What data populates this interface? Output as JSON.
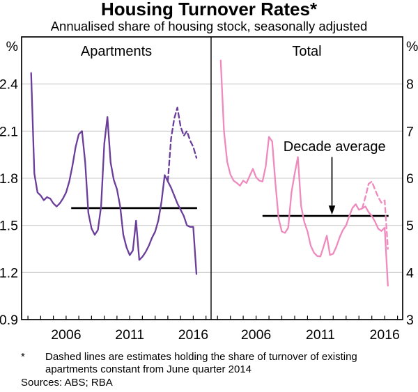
{
  "title": "Housing Turnover Rates*",
  "subtitle": "Annualised share of housing stock, seasonally adjusted",
  "footnote": {
    "marker": "*",
    "text": "Dashed lines are estimates holding the share of turnover of existing apartments constant from June quarter 2014"
  },
  "sources": "Sources: ABS; RBA",
  "colors": {
    "apartments": "#6a3d9a",
    "total": "#ee8abd",
    "average_line": "#000000",
    "gridline": "#c9c9c9",
    "axis": "#000000"
  },
  "chart_data": [
    {
      "type": "line",
      "panel": "left",
      "title": "Apartments",
      "unit_label": "%",
      "ylim": [
        0.9,
        2.7
      ],
      "yticks": [
        0.9,
        1.2,
        1.5,
        1.8,
        2.1,
        2.4
      ],
      "xlim": [
        2002.5,
        2017.4
      ],
      "xticks_labeled": [
        2006,
        2011,
        2016
      ],
      "grid": true,
      "average_line": {
        "value": 1.61,
        "from": 2006.4,
        "to": 2016.3
      },
      "series": [
        {
          "name": "apartments-turnover",
          "legend": "Apartments",
          "style": "solid",
          "color": "apartments",
          "points": [
            [
              2003.25,
              2.47
            ],
            [
              2003.5,
              1.83
            ],
            [
              2003.75,
              1.71
            ],
            [
              2004,
              1.69
            ],
            [
              2004.25,
              1.66
            ],
            [
              2004.5,
              1.68
            ],
            [
              2004.75,
              1.67
            ],
            [
              2005,
              1.64
            ],
            [
              2005.25,
              1.62
            ],
            [
              2005.5,
              1.64
            ],
            [
              2005.75,
              1.67
            ],
            [
              2006,
              1.71
            ],
            [
              2006.25,
              1.78
            ],
            [
              2006.5,
              1.88
            ],
            [
              2006.75,
              2.0
            ],
            [
              2007,
              2.08
            ],
            [
              2007.25,
              2.1
            ],
            [
              2007.5,
              1.9
            ],
            [
              2007.75,
              1.58
            ],
            [
              2008,
              1.48
            ],
            [
              2008.25,
              1.44
            ],
            [
              2008.5,
              1.47
            ],
            [
              2008.75,
              1.62
            ],
            [
              2009,
              2.02
            ],
            [
              2009.25,
              2.19
            ],
            [
              2009.5,
              1.9
            ],
            [
              2009.75,
              1.79
            ],
            [
              2010,
              1.73
            ],
            [
              2010.25,
              1.62
            ],
            [
              2010.5,
              1.44
            ],
            [
              2010.75,
              1.36
            ],
            [
              2011,
              1.31
            ],
            [
              2011.25,
              1.34
            ],
            [
              2011.5,
              1.53
            ],
            [
              2011.75,
              1.28
            ],
            [
              2012,
              1.3
            ],
            [
              2012.25,
              1.33
            ],
            [
              2012.5,
              1.37
            ],
            [
              2012.75,
              1.42
            ],
            [
              2013,
              1.46
            ],
            [
              2013.25,
              1.53
            ],
            [
              2013.5,
              1.65
            ],
            [
              2013.75,
              1.82
            ],
            [
              2014,
              1.78
            ],
            [
              2014.25,
              1.74
            ],
            [
              2014.5,
              1.69
            ],
            [
              2014.75,
              1.64
            ],
            [
              2015,
              1.6
            ],
            [
              2015.25,
              1.56
            ],
            [
              2015.5,
              1.5
            ],
            [
              2015.75,
              1.49
            ],
            [
              2016,
              1.49
            ],
            [
              2016.25,
              1.19
            ]
          ]
        },
        {
          "name": "apartments-turnover-estimate",
          "legend": "Apartments (estimate)",
          "style": "dashed",
          "color": "apartments",
          "points": [
            [
              2014,
              1.78
            ],
            [
              2014.25,
              2.05
            ],
            [
              2014.5,
              2.18
            ],
            [
              2014.75,
              2.25
            ],
            [
              2015,
              2.13
            ],
            [
              2015.25,
              2.07
            ],
            [
              2015.5,
              2.1
            ],
            [
              2015.75,
              2.04
            ],
            [
              2016,
              2.0
            ],
            [
              2016.25,
              1.93
            ]
          ]
        }
      ]
    },
    {
      "type": "line",
      "panel": "right",
      "title": "Total",
      "unit_label": "%",
      "ylim": [
        3,
        9
      ],
      "yticks": [
        3,
        4,
        5,
        6,
        7,
        8
      ],
      "xlim": [
        2002.5,
        2017.4
      ],
      "xticks_labeled": [
        2006,
        2011,
        2016
      ],
      "grid": true,
      "average_line": {
        "value": 5.2,
        "from": 2006.5,
        "to": 2016.3
      },
      "annotation": {
        "text": "Decade average",
        "text_year": 2012.1,
        "text_value": 6.58,
        "arrow_year": 2011.9,
        "arrow_from": 6.45,
        "arrow_to": 5.42
      },
      "series": [
        {
          "name": "total-turnover",
          "legend": "Total",
          "style": "solid",
          "color": "total",
          "points": [
            [
              2003.25,
              8.5
            ],
            [
              2003.5,
              7.0
            ],
            [
              2003.75,
              6.35
            ],
            [
              2004,
              6.08
            ],
            [
              2004.25,
              5.95
            ],
            [
              2004.5,
              5.9
            ],
            [
              2004.75,
              5.84
            ],
            [
              2005,
              5.95
            ],
            [
              2005.25,
              5.9
            ],
            [
              2005.5,
              6.05
            ],
            [
              2005.75,
              6.2
            ],
            [
              2006,
              6.02
            ],
            [
              2006.25,
              5.95
            ],
            [
              2006.5,
              5.93
            ],
            [
              2006.75,
              6.25
            ],
            [
              2007,
              6.88
            ],
            [
              2007.25,
              6.78
            ],
            [
              2007.5,
              5.9
            ],
            [
              2007.75,
              5.15
            ],
            [
              2008,
              4.87
            ],
            [
              2008.25,
              4.84
            ],
            [
              2008.5,
              4.95
            ],
            [
              2008.75,
              5.7
            ],
            [
              2009,
              6.1
            ],
            [
              2009.25,
              6.45
            ],
            [
              2009.5,
              5.41
            ],
            [
              2009.75,
              5.07
            ],
            [
              2010,
              4.87
            ],
            [
              2010.25,
              4.57
            ],
            [
              2010.5,
              4.42
            ],
            [
              2010.75,
              4.35
            ],
            [
              2011,
              4.34
            ],
            [
              2011.25,
              4.55
            ],
            [
              2011.5,
              4.78
            ],
            [
              2011.75,
              4.37
            ],
            [
              2012,
              4.4
            ],
            [
              2012.25,
              4.55
            ],
            [
              2012.5,
              4.75
            ],
            [
              2012.75,
              4.9
            ],
            [
              2013,
              5.0
            ],
            [
              2013.25,
              5.2
            ],
            [
              2013.5,
              5.37
            ],
            [
              2013.75,
              5.45
            ],
            [
              2014,
              5.33
            ],
            [
              2014.25,
              5.36
            ],
            [
              2014.5,
              5.4
            ],
            [
              2014.75,
              5.28
            ],
            [
              2015,
              5.2
            ],
            [
              2015.25,
              5.08
            ],
            [
              2015.5,
              4.93
            ],
            [
              2015.75,
              4.88
            ],
            [
              2016,
              4.95
            ],
            [
              2016.25,
              3.72
            ]
          ]
        },
        {
          "name": "total-turnover-estimate",
          "legend": "Total (estimate)",
          "style": "dashed",
          "color": "total",
          "points": [
            [
              2014.25,
              5.36
            ],
            [
              2014.5,
              5.6
            ],
            [
              2014.75,
              5.88
            ],
            [
              2015,
              5.93
            ],
            [
              2015.25,
              5.76
            ],
            [
              2015.5,
              5.6
            ],
            [
              2015.75,
              5.48
            ],
            [
              2016,
              5.53
            ],
            [
              2016.25,
              4.5
            ]
          ]
        }
      ]
    }
  ]
}
